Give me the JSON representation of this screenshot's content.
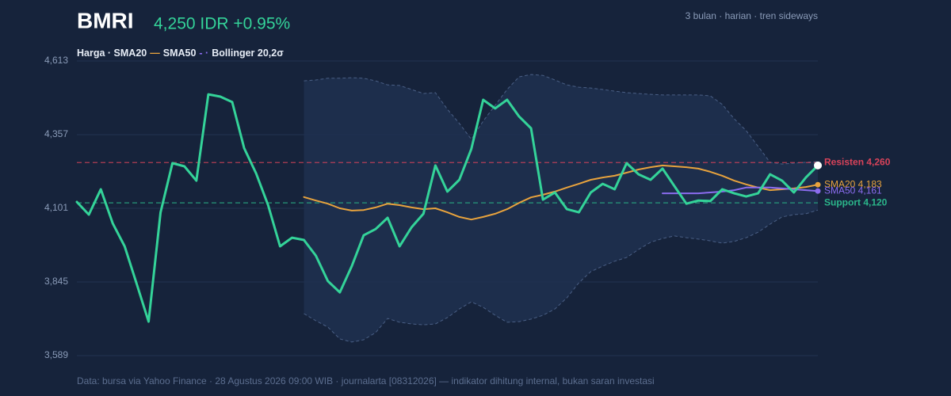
{
  "chart_data": {
    "type": "line",
    "title": "BMRI",
    "price_label": "4,250 IDR +0.95%",
    "subtitle": "3 bulan · harian · tren sideways",
    "legend_parts": [
      {
        "text": "Harga · SMA20",
        "color": "#e6ecf5"
      },
      {
        "text": "—",
        "color": "#e8a33d"
      },
      {
        "text": "SMA50",
        "color": "#e6ecf5"
      },
      {
        "text": "- ·",
        "color": "#8b6cf0"
      },
      {
        "text": "Bollinger 20,2σ",
        "color": "#e6ecf5"
      }
    ],
    "footer": "Data: bursa via Yahoo Finance · 28 Agustus 2026 09:00 WIB · journalarta [08312026] — indikator dihitung internal, bukan saran investasi",
    "ylim": [
      3589,
      4613
    ],
    "yticks": [
      {
        "value": 3589,
        "label": "3,589"
      },
      {
        "value": 3845,
        "label": "3,845"
      },
      {
        "value": 4101,
        "label": "4,101"
      },
      {
        "value": 4357,
        "label": "4,357"
      },
      {
        "value": 4613,
        "label": "4,613"
      }
    ],
    "grid": true,
    "band": {
      "color": "#1f3050",
      "edge_color": "#4a5f85",
      "upper": [
        null,
        null,
        null,
        null,
        null,
        null,
        null,
        null,
        null,
        null,
        null,
        null,
        null,
        null,
        null,
        null,
        null,
        null,
        null,
        4544,
        4547,
        4553,
        4553,
        4555,
        4553,
        4544,
        4530,
        4528,
        4514,
        4500,
        4503,
        4445,
        4396,
        4341,
        4404,
        4459,
        4514,
        4558,
        4566,
        4563,
        4547,
        4530,
        4522,
        4519,
        4514,
        4508,
        4503,
        4500,
        4497,
        4495,
        4495,
        4495,
        4495,
        4492,
        4462,
        4412,
        4371,
        4316,
        4261,
        4255,
        4258,
        4261,
        4263
      ],
      "lower": [
        null,
        null,
        null,
        null,
        null,
        null,
        null,
        null,
        null,
        null,
        null,
        null,
        null,
        null,
        null,
        null,
        null,
        null,
        null,
        3735,
        3710,
        3688,
        3647,
        3636,
        3644,
        3669,
        3718,
        3705,
        3699,
        3696,
        3699,
        3721,
        3751,
        3776,
        3757,
        3729,
        3705,
        3707,
        3716,
        3729,
        3751,
        3790,
        3842,
        3881,
        3900,
        3917,
        3930,
        3958,
        3983,
        3996,
        4005,
        3999,
        3994,
        3988,
        3980,
        3986,
        3999,
        4018,
        4046,
        4071,
        4079,
        4082,
        4095
      ]
    },
    "series": [
      {
        "color": "#34d399",
        "width": 3,
        "end_dot": "#ffffff",
        "values": [
          4123,
          4079,
          4167,
          4049,
          3969,
          3839,
          3707,
          4087,
          4258,
          4247,
          4197,
          4497,
          4489,
          4470,
          4310,
          4222,
          4112,
          3969,
          3999,
          3991,
          3936,
          3848,
          3809,
          3900,
          4007,
          4029,
          4068,
          3969,
          4035,
          4082,
          4250,
          4159,
          4200,
          4307,
          4478,
          4448,
          4478,
          4420,
          4379,
          4131,
          4156,
          4098,
          4087,
          4156,
          4186,
          4167,
          4258,
          4219,
          4200,
          4239,
          4178,
          4117,
          4128,
          4126,
          4167,
          4153,
          4142,
          4153,
          4219,
          4197,
          4156,
          4208,
          4250
        ]
      },
      {
        "color": "#e8a33d",
        "width": 2,
        "end_dot": "#e8a33d",
        "end_label": "SMA20 4,183",
        "values": [
          null,
          null,
          null,
          null,
          null,
          null,
          null,
          null,
          null,
          null,
          null,
          null,
          null,
          null,
          null,
          null,
          null,
          null,
          null,
          4140,
          4128,
          4117,
          4101,
          4093,
          4095,
          4104,
          4117,
          4112,
          4104,
          4098,
          4101,
          4087,
          4071,
          4062,
          4071,
          4082,
          4098,
          4120,
          4139,
          4148,
          4159,
          4173,
          4186,
          4200,
          4208,
          4214,
          4225,
          4236,
          4244,
          4250,
          4247,
          4244,
          4239,
          4228,
          4214,
          4197,
          4184,
          4173,
          4164,
          4167,
          4170,
          4175,
          4183
        ]
      },
      {
        "color": "#8b6cf0",
        "width": 2,
        "end_dot": "#8b6cf0",
        "end_label": "SMA50 4,161",
        "values": [
          null,
          null,
          null,
          null,
          null,
          null,
          null,
          null,
          null,
          null,
          null,
          null,
          null,
          null,
          null,
          null,
          null,
          null,
          null,
          null,
          null,
          null,
          null,
          null,
          null,
          null,
          null,
          null,
          null,
          null,
          null,
          null,
          null,
          null,
          null,
          null,
          null,
          null,
          null,
          null,
          null,
          null,
          null,
          null,
          null,
          null,
          null,
          null,
          null,
          4153,
          4153,
          4153,
          4153,
          4156,
          4159,
          4164,
          4173,
          4173,
          4173,
          4170,
          4167,
          4164,
          4161
        ]
      }
    ],
    "levels": [
      {
        "value": 4260,
        "label": "Resisten 4,260",
        "color": "#d9435a"
      },
      {
        "value": 4120,
        "label": "Support 4,120",
        "color": "#2bb58a"
      }
    ]
  }
}
